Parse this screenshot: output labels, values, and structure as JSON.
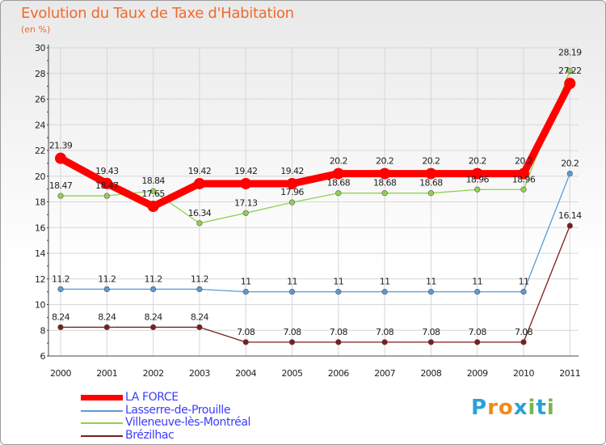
{
  "title": "Evolution du Taux de Taxe d'Habitation",
  "unit_label": "(en %)",
  "logo": {
    "text": "Proxiti",
    "letters": [
      "P",
      "r",
      "o",
      "x",
      "i",
      "t",
      "i"
    ],
    "colors": [
      "#2aa0d8",
      "#f08a1c",
      "#f08a1c",
      "#2aa0d8",
      "#7ab648",
      "#2aa0d8",
      "#7ab648"
    ]
  },
  "chart_data": {
    "type": "line",
    "title": "Evolution du Taux de Taxe d'Habitation",
    "ylabel": "(en %)",
    "xlabel": "",
    "x": [
      "2000",
      "2001",
      "2002",
      "2003",
      "2004",
      "2005",
      "2006",
      "2007",
      "2008",
      "2009",
      "2010",
      "2011"
    ],
    "ylim": [
      6,
      30
    ],
    "yticks": [
      6,
      8,
      10,
      12,
      14,
      16,
      18,
      20,
      22,
      24,
      26,
      28,
      30
    ],
    "grid": true,
    "legend_position": "bottom-left",
    "series": [
      {
        "name": "LA FORCE",
        "color": "#ff0000",
        "bold": true,
        "values": [
          21.39,
          19.43,
          17.65,
          19.42,
          19.42,
          19.42,
          20.2,
          20.2,
          20.2,
          20.2,
          20.2,
          27.22
        ],
        "labels": [
          "21.39",
          "19.43",
          "17.65",
          "19.42",
          "19.42",
          "19.42",
          "20.2",
          "20.2",
          "20.2",
          "20.2",
          "20.2",
          "27.22"
        ]
      },
      {
        "name": "Lasserre-de-Prouille",
        "color": "#5b9bd5",
        "bold": false,
        "values": [
          11.2,
          11.2,
          11.2,
          11.2,
          11,
          11,
          11,
          11,
          11,
          11,
          11,
          20.2
        ],
        "labels": [
          "11.2",
          "11.2",
          "11.2",
          "11.2",
          "11",
          "11",
          "11",
          "11",
          "11",
          "11",
          "11",
          "20.2"
        ]
      },
      {
        "name": "Villeneuve-lès-Montréal",
        "color": "#92d050",
        "bold": false,
        "values": [
          18.47,
          18.47,
          18.84,
          16.34,
          17.13,
          17.96,
          18.68,
          18.68,
          18.68,
          18.96,
          18.96,
          28.19
        ],
        "labels": [
          "18.47",
          "18.47",
          "18.84",
          "16.34",
          "17.13",
          "17.96",
          "18.68",
          "18.68",
          "18.68",
          "18.96",
          "18.96",
          "28.19"
        ]
      },
      {
        "name": "Brézilhac",
        "color": "#7b1d1d",
        "bold": false,
        "values": [
          8.24,
          8.24,
          8.24,
          8.24,
          7.08,
          7.08,
          7.08,
          7.08,
          7.08,
          7.08,
          7.08,
          16.14
        ],
        "labels": [
          "8.24",
          "8.24",
          "8.24",
          "8.24",
          "7.08",
          "7.08",
          "7.08",
          "7.08",
          "7.08",
          "7.08",
          "7.08",
          "16.14"
        ]
      }
    ]
  }
}
